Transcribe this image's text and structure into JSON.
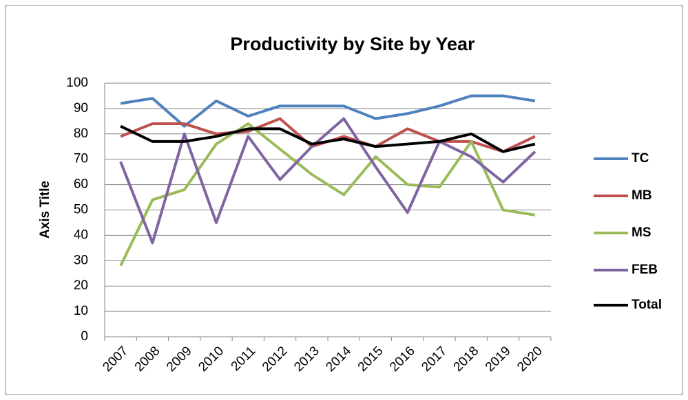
{
  "chart_data": {
    "type": "line",
    "title": "Productivity by Site by Year",
    "y_label": "Axis Title",
    "categories": [
      "2007",
      "2008",
      "2009",
      "2010",
      "2011",
      "2012",
      "2013",
      "2014",
      "2015",
      "2016",
      "2017",
      "2018",
      "2019",
      "2020"
    ],
    "series": [
      {
        "name": "TC",
        "color": "#4f81bd",
        "values": [
          92,
          94,
          83,
          93,
          87,
          91,
          91,
          91,
          86,
          88,
          91,
          95,
          95,
          93
        ]
      },
      {
        "name": "MB",
        "color": "#c0504d",
        "values": [
          79,
          84,
          84,
          80,
          81,
          86,
          75,
          79,
          75,
          82,
          77,
          77,
          73,
          79
        ]
      },
      {
        "name": "MS",
        "color": "#9bbb59",
        "values": [
          28,
          54,
          58,
          76,
          84,
          74,
          64,
          56,
          71,
          60,
          59,
          77,
          50,
          48
        ]
      },
      {
        "name": "FEB",
        "color": "#8064a2",
        "values": [
          69,
          37,
          80,
          45,
          79,
          62,
          75,
          86,
          67,
          49,
          77,
          71,
          61,
          73
        ]
      },
      {
        "name": "Total",
        "color": "#000000",
        "values": [
          83,
          77,
          77,
          79,
          82,
          82,
          76,
          78,
          75,
          76,
          77,
          80,
          73,
          76
        ]
      }
    ],
    "ylim": [
      0,
      100
    ],
    "yticks": [
      0,
      10,
      20,
      30,
      40,
      50,
      60,
      70,
      80,
      90,
      100
    ],
    "grid": true,
    "legend": "right"
  }
}
